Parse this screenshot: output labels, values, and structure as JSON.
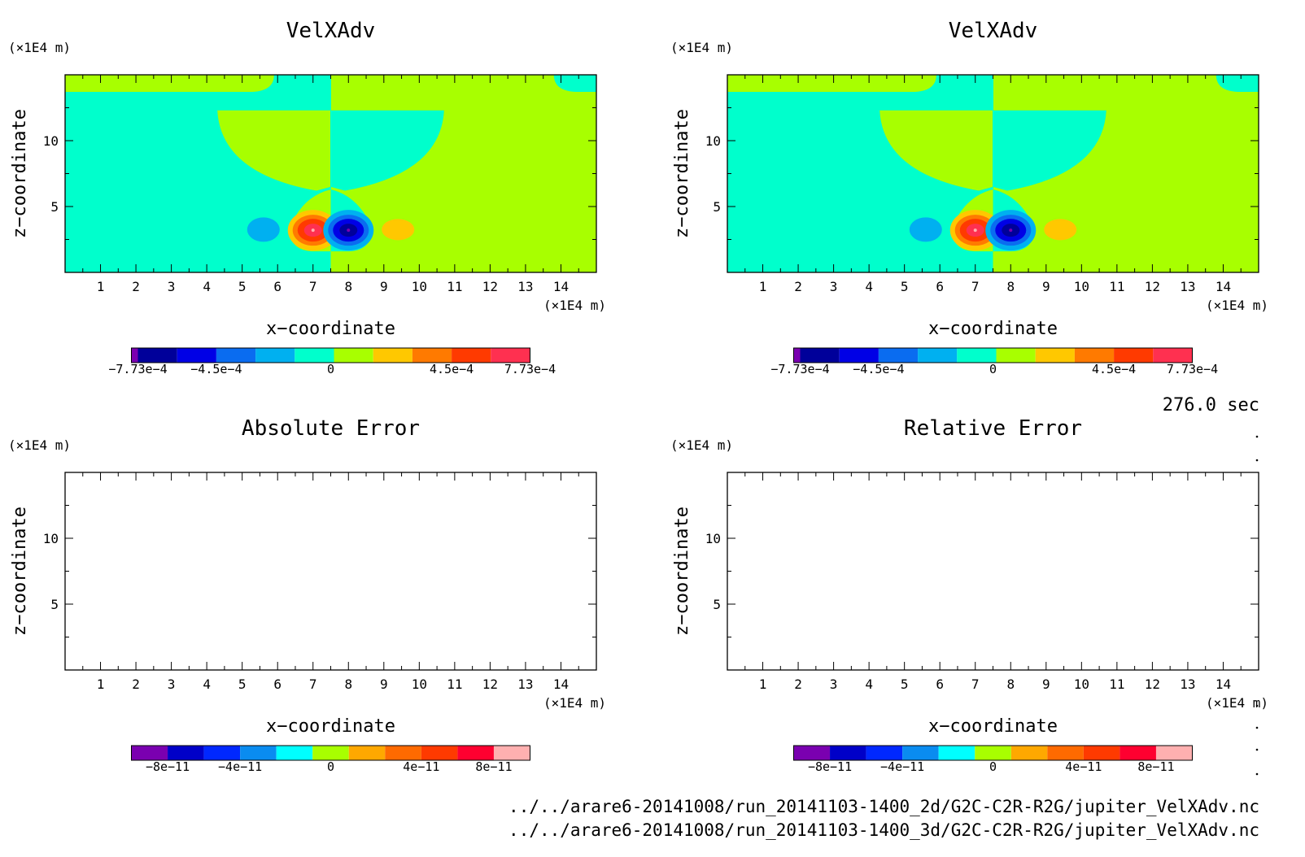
{
  "panels": [
    {
      "title": "VelXAdv",
      "x_unit": "(×1E4 m)",
      "y_unit": "(×1E4 m)",
      "xlabel": "x−coordinate",
      "ylabel": "z−coordinate",
      "xticks": [
        "1",
        "2",
        "3",
        "4",
        "5",
        "6",
        "7",
        "8",
        "9",
        "10",
        "11",
        "12",
        "13",
        "14"
      ],
      "yticks": [
        "5",
        "10"
      ],
      "colorbar_labels": [
        "−7.73e−4",
        "−4.5e−4",
        "0",
        "4.5e−4",
        "7.73e−4"
      ],
      "content": "field"
    },
    {
      "title": "VelXAdv",
      "x_unit": "(×1E4 m)",
      "y_unit": "(×1E4 m)",
      "xlabel": "x−coordinate",
      "ylabel": "z−coordinate",
      "xticks": [
        "1",
        "2",
        "3",
        "4",
        "5",
        "6",
        "7",
        "8",
        "9",
        "10",
        "11",
        "12",
        "13",
        "14"
      ],
      "yticks": [
        "5",
        "10"
      ],
      "colorbar_labels": [
        "−7.73e−4",
        "−4.5e−4",
        "0",
        "4.5e−4",
        "7.73e−4"
      ],
      "content": "field"
    },
    {
      "title": "Absolute Error",
      "x_unit": "(×1E4 m)",
      "y_unit": "(×1E4 m)",
      "xlabel": "x−coordinate",
      "ylabel": "z−coordinate",
      "xticks": [
        "1",
        "2",
        "3",
        "4",
        "5",
        "6",
        "7",
        "8",
        "9",
        "10",
        "11",
        "12",
        "13",
        "14"
      ],
      "yticks": [
        "5",
        "10"
      ],
      "colorbar_labels": [
        "−8e−11",
        "−4e−11",
        "0",
        "4e−11",
        "8e−11"
      ],
      "content": "empty"
    },
    {
      "title": "Relative Error",
      "x_unit": "(×1E4 m)",
      "y_unit": "(×1E4 m)",
      "xlabel": "x−coordinate",
      "ylabel": "z−coordinate",
      "xticks": [
        "1",
        "2",
        "3",
        "4",
        "5",
        "6",
        "7",
        "8",
        "9",
        "10",
        "11",
        "12",
        "13",
        "14"
      ],
      "yticks": [
        "5",
        "10"
      ],
      "colorbar_labels": [
        "−8e−11",
        "−4e−11",
        "0",
        "4e−11",
        "8e−11"
      ],
      "content": "empty"
    }
  ],
  "time_label": "276.0 sec",
  "file_paths": [
    "../../arare6-20141008/run_20141103-1400_2d/G2C-C2R-R2G/jupiter_VelXAdv.nc",
    "../../arare6-20141008/run_20141103-1400_3d/G2C-C2R-R2G/jupiter_VelXAdv.nc"
  ],
  "colors": {
    "top_colorbar": [
      "#7a00b0",
      "#00009a",
      "#0000e6",
      "#0a6cf0",
      "#00b0f0",
      "#00ffcc",
      "#a8ff00",
      "#ffc800",
      "#ff7a00",
      "#ff3a00",
      "#ff3050",
      "#ffb0b0"
    ],
    "bottom_colorbar": [
      "#7a00b0",
      "#0000c8",
      "#0028ff",
      "#0a8cf0",
      "#00ffff",
      "#a8ff00",
      "#ffa800",
      "#ff6a00",
      "#ff3a00",
      "#ff0030",
      "#ffb0b0"
    ],
    "field_left": "#00ffcc",
    "field_right": "#a8ff00"
  },
  "chart_data": [
    {
      "type": "heatmap",
      "title": "VelXAdv",
      "xlabel": "x−coordinate",
      "ylabel": "z−coordinate",
      "xlim": [
        0,
        15
      ],
      "ylim": [
        0,
        15
      ],
      "colorbar_range": [
        -0.000773,
        0.000773
      ],
      "features": [
        {
          "value_sign": "positive",
          "x": 7.0,
          "z": 3.2
        },
        {
          "value_sign": "negative",
          "x": 8.0,
          "z": 3.2
        },
        {
          "value_sign": "weak negative",
          "x": 5.6,
          "z": 3.2
        },
        {
          "value_sign": "weak positive",
          "x": 9.4,
          "z": 3.2
        }
      ]
    },
    {
      "type": "heatmap",
      "title": "VelXAdv",
      "xlabel": "x−coordinate",
      "ylabel": "z−coordinate",
      "xlim": [
        0,
        15
      ],
      "ylim": [
        0,
        15
      ],
      "colorbar_range": [
        -0.000773,
        0.000773
      ]
    },
    {
      "type": "heatmap",
      "title": "Absolute Error",
      "xlabel": "x−coordinate",
      "ylabel": "z−coordinate",
      "xlim": [
        0,
        15
      ],
      "ylim": [
        0,
        15
      ],
      "colorbar_range": [
        -1e-10,
        1e-10
      ]
    },
    {
      "type": "heatmap",
      "title": "Relative Error",
      "xlabel": "x−coordinate",
      "ylabel": "z−coordinate",
      "xlim": [
        0,
        15
      ],
      "ylim": [
        0,
        15
      ],
      "colorbar_range": [
        -1e-10,
        1e-10
      ]
    }
  ]
}
